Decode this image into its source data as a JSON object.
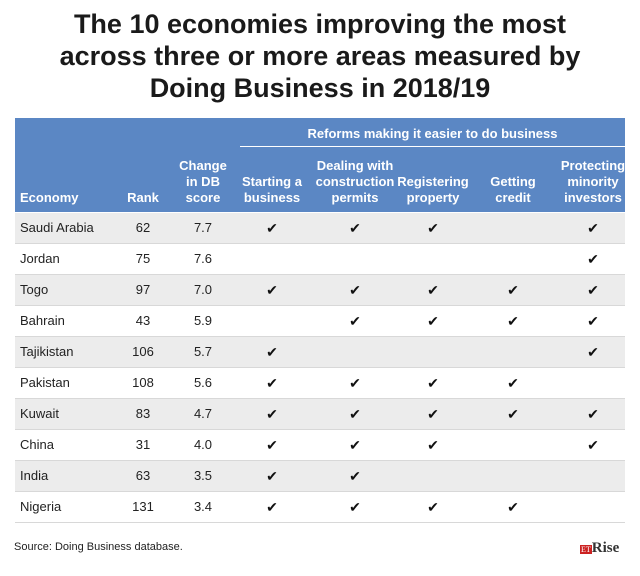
{
  "title": [
    "The 10 economies improving the most",
    "across three or more areas measured by",
    "Doing Business in 2018/19"
  ],
  "table": {
    "group_header": "Reforms making it easier to do business",
    "columns": [
      [
        "Economy"
      ],
      [
        "Rank"
      ],
      [
        "Change",
        "in DB",
        "score"
      ],
      [
        "Starting a",
        "business"
      ],
      [
        "Dealing with",
        "construction",
        "permits"
      ],
      [
        "Registering",
        "property"
      ],
      [
        "Getting",
        "credit"
      ],
      [
        "Protecting",
        "minority",
        "investors"
      ]
    ],
    "check": "✔",
    "rows": [
      {
        "economy": "Saudi Arabia",
        "rank": "62",
        "change": "7.7",
        "reforms": [
          true,
          true,
          true,
          false,
          true
        ]
      },
      {
        "economy": "Jordan",
        "rank": "75",
        "change": "7.6",
        "reforms": [
          false,
          false,
          false,
          false,
          true
        ]
      },
      {
        "economy": "Togo",
        "rank": "97",
        "change": "7.0",
        "reforms": [
          true,
          true,
          true,
          true,
          true
        ]
      },
      {
        "economy": "Bahrain",
        "rank": "43",
        "change": "5.9",
        "reforms": [
          false,
          true,
          true,
          true,
          true
        ]
      },
      {
        "economy": "Tajikistan",
        "rank": "106",
        "change": "5.7",
        "reforms": [
          true,
          false,
          false,
          false,
          true
        ]
      },
      {
        "economy": "Pakistan",
        "rank": "108",
        "change": "5.6",
        "reforms": [
          true,
          true,
          true,
          true,
          false
        ]
      },
      {
        "economy": "Kuwait",
        "rank": "83",
        "change": "4.7",
        "reforms": [
          true,
          true,
          true,
          true,
          true
        ]
      },
      {
        "economy": "China",
        "rank": "31",
        "change": "4.0",
        "reforms": [
          true,
          true,
          true,
          false,
          true
        ]
      },
      {
        "economy": "India",
        "rank": "63",
        "change": "3.5",
        "reforms": [
          true,
          true,
          false,
          false,
          false
        ]
      },
      {
        "economy": "Nigeria",
        "rank": "131",
        "change": "3.4",
        "reforms": [
          true,
          true,
          true,
          true,
          false
        ]
      }
    ]
  },
  "source": "Source: Doing Business database.",
  "logo": {
    "prefix": "ET",
    "name": "Rise"
  }
}
